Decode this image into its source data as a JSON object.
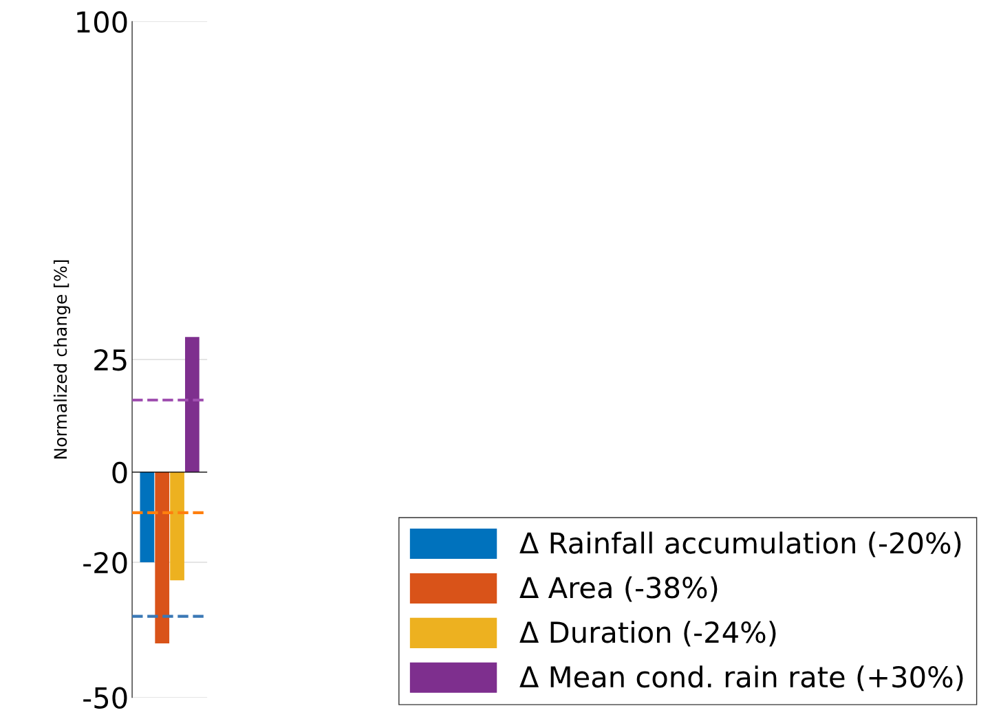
{
  "chart_data": {
    "type": "bar",
    "ylabel": "Normalized change [%]",
    "categories": [
      null
    ],
    "series": [
      {
        "name": "Δ Rainfall accumulation (-20%)",
        "color": "#0072bd",
        "values": [
          -20
        ]
      },
      {
        "name": "Δ Area (-38%)",
        "color": "#d95319",
        "values": [
          -38
        ]
      },
      {
        "name": "Δ Duration (-24%)",
        "color": "#edb120",
        "values": [
          -24
        ]
      },
      {
        "name": "Δ Mean cond. rain rate (+30%)",
        "color": "#7e2f8e",
        "values": [
          30
        ]
      }
    ],
    "ylim": [
      -50,
      100
    ],
    "yticks": [
      -50,
      -20,
      0,
      25,
      100
    ],
    "grid": "y",
    "legend": "bottom right",
    "ref_lines": [
      {
        "axis": "y",
        "value": 0,
        "color": "#000000",
        "line_style": "solid"
      },
      {
        "axis": "y",
        "value": 16,
        "color": "#a050b0",
        "line_style": "dashed"
      },
      {
        "axis": "y",
        "value": -9,
        "color": "#ff7f0e",
        "line_style": "dashed"
      },
      {
        "axis": "y",
        "value": -32,
        "color": "#3a78b5",
        "line_style": "dashed"
      }
    ]
  }
}
